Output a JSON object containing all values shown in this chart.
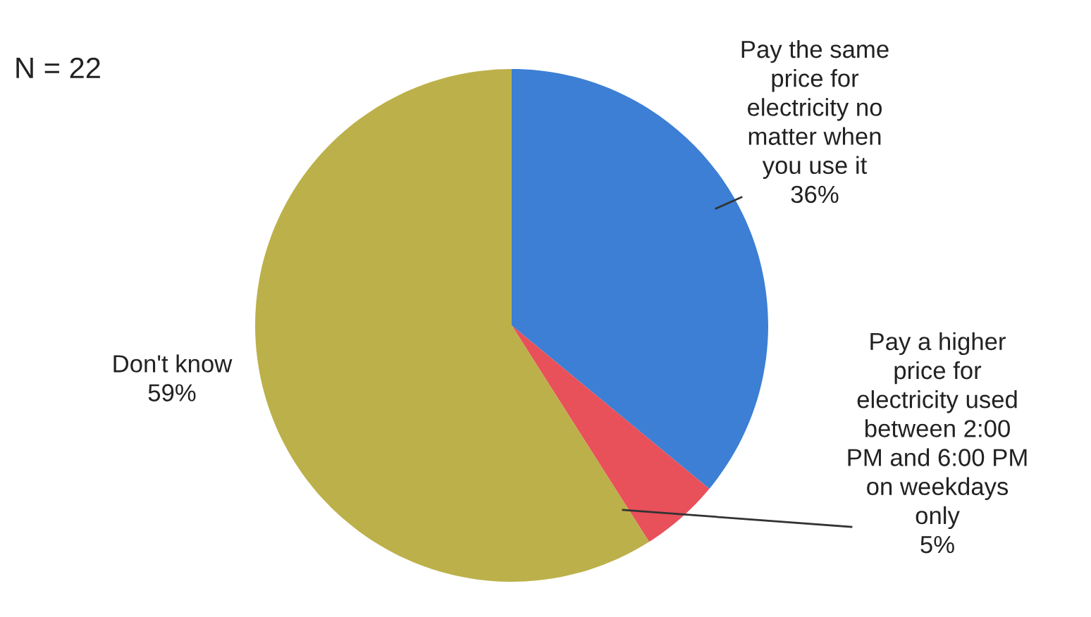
{
  "chart_data": {
    "type": "pie",
    "categories": [
      "Pay the same\nprice for\nelectricity no\nmatter when\nyou use it",
      "Pay a higher\nprice for\nelectricity used\nbetween 2:00\nPM and 6:00 PM\non weekdays\nonly",
      "Don't know"
    ],
    "values": [
      36,
      5,
      59
    ],
    "value_labels": [
      "36%",
      "5%",
      "59%"
    ],
    "colors": [
      "#3c7fd4",
      "#e8505a",
      "#bcb04a"
    ],
    "annotations": [
      "N = 22"
    ]
  }
}
